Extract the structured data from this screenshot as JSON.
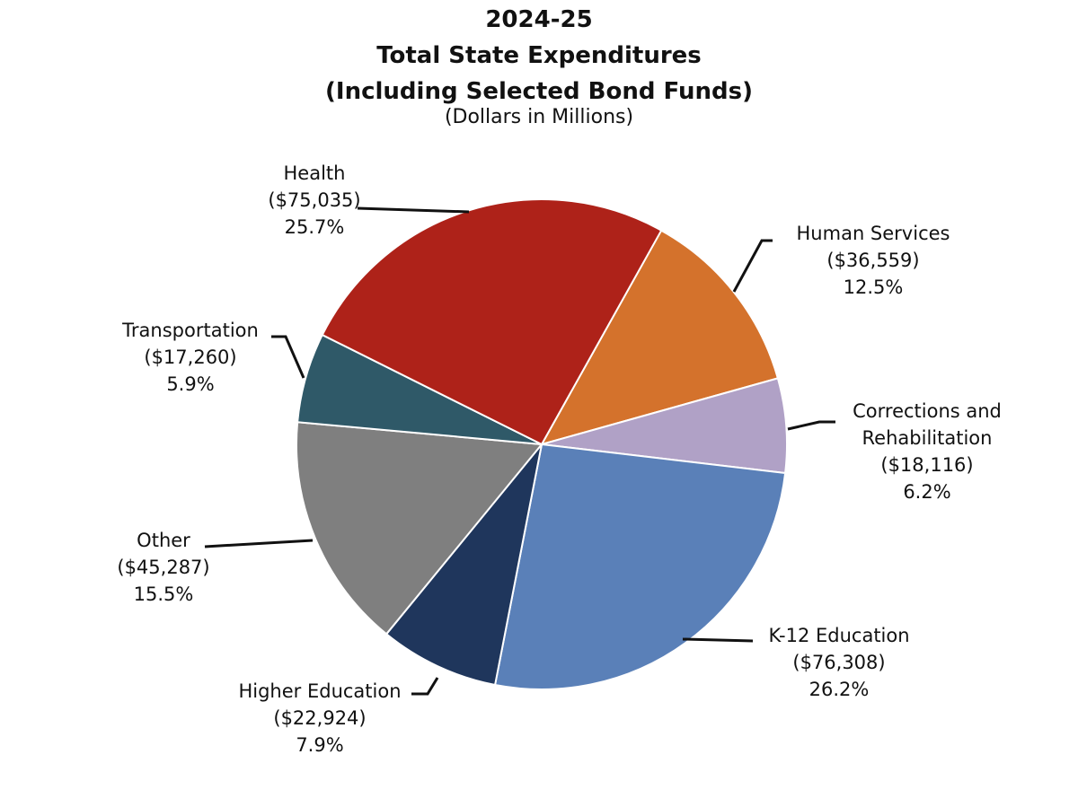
{
  "chart_data": {
    "type": "pie",
    "title": [
      "2024-25",
      "Total State Expenditures",
      "(Including Selected Bond Funds)"
    ],
    "subtitle": "(Dollars in Millions)",
    "slices": [
      {
        "name": "Human Services",
        "value": 36559,
        "value_label": "($36,559)",
        "percent_label": "12.5%",
        "color": "#D4722C"
      },
      {
        "name": "Corrections and Rehabilitation",
        "name_lines": [
          "Corrections and",
          "Rehabilitation"
        ],
        "value": 18116,
        "value_label": "($18,116)",
        "percent_label": "6.2%",
        "color": "#B0A1C6"
      },
      {
        "name": "K-12 Education",
        "value": 76308,
        "value_label": "($76,308)",
        "percent_label": "26.2%",
        "color": "#5A80B8"
      },
      {
        "name": "Higher Education",
        "value": 22924,
        "value_label": "($22,924)",
        "percent_label": "7.9%",
        "color": "#1F365C"
      },
      {
        "name": "Other",
        "value": 45287,
        "value_label": "($45,287)",
        "percent_label": "15.5%",
        "color": "#7F7F7F"
      },
      {
        "name": "Transportation",
        "value": 17260,
        "value_label": "($17,260)",
        "percent_label": "5.9%",
        "color": "#2F5968"
      },
      {
        "name": "Health",
        "value": 75035,
        "value_label": "($75,035)",
        "percent_label": "25.7%",
        "color": "#AE2219"
      }
    ]
  }
}
